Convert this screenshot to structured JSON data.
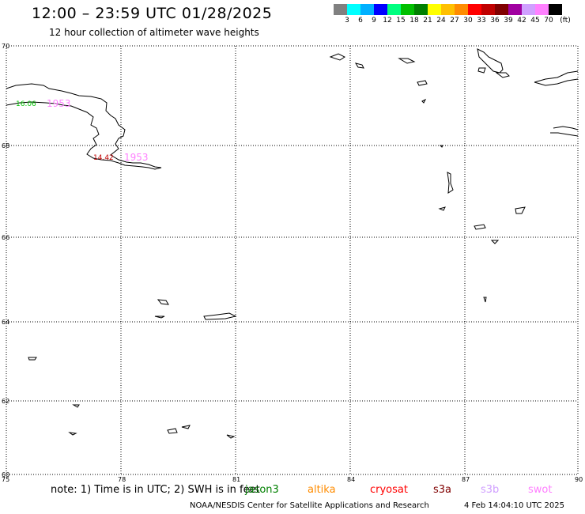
{
  "header": {
    "title": "12:00 – 23:59 UTC 01/28/2025",
    "subtitle": "12 hour collection of altimeter wave heights"
  },
  "legend": {
    "unit": "(ft)",
    "colors": [
      "#808080",
      "#00ffff",
      "#00b0ff",
      "#0000ff",
      "#00ff80",
      "#00c000",
      "#008000",
      "#ffff00",
      "#ffc000",
      "#ff8c00",
      "#ff0000",
      "#c00000",
      "#800000",
      "#a000a0",
      "#d0a0ff",
      "#ff80ff",
      "#000000"
    ],
    "labels": [
      "3",
      "6",
      "9",
      "12",
      "15",
      "18",
      "21",
      "24",
      "27",
      "30",
      "33",
      "36",
      "39",
      "42",
      "45",
      "70"
    ]
  },
  "axes": {
    "x_ticks": [
      "75",
      "78",
      "81",
      "84",
      "87",
      "90"
    ],
    "y_ticks": [
      "70",
      "68",
      "66",
      "64",
      "62",
      "60"
    ]
  },
  "observations": [
    {
      "value": "16.06",
      "color": "#00c000",
      "time": "1953",
      "time_color": "#ff80ff"
    },
    {
      "value": "14.42",
      "color": "#c00000",
      "time": "1953",
      "time_color": "#ff80ff"
    }
  ],
  "note": "note:  1) Time is in UTC;  2) SWH is in feet",
  "satellites": [
    {
      "name": "jason3",
      "color": "#008000"
    },
    {
      "name": "altika",
      "color": "#ff8c00"
    },
    {
      "name": "cryosat",
      "color": "#ff0000"
    },
    {
      "name": "s3a",
      "color": "#800000"
    },
    {
      "name": "s3b",
      "color": "#d0a0ff"
    },
    {
      "name": "swot",
      "color": "#ff80ff"
    }
  ],
  "footer": {
    "credit": "NOAA/NESDIS Center for Satellite Applications and Research",
    "timestamp": "4 Feb 14:04:10 UTC 2025"
  }
}
